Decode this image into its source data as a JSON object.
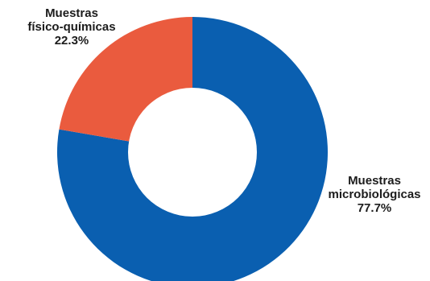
{
  "chart_data": {
    "type": "pie",
    "style": "donut",
    "slices": [
      {
        "name": "Muestras",
        "name_line2": "microbiológicas",
        "value": 77.7,
        "value_label": "77.7%",
        "color": "#0a5fb0"
      },
      {
        "name": "Muestras",
        "name_line2": "físico-químicas",
        "value": 22.3,
        "value_label": "22.3%",
        "color": "#ea5b3e"
      }
    ],
    "legend": "none"
  }
}
